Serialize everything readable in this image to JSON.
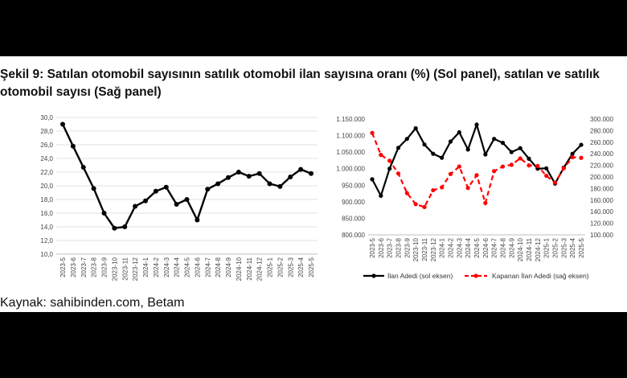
{
  "caption": "Şekil 9: Satılan otomobil sayısının satılık otomobil ilan sayısına oranı (%) (Sol panel), satılan ve satılık otomobil sayısı (Sağ panel)",
  "source": "Kaynak: sahibinden.com, Betam",
  "colors": {
    "black_series": "#000000",
    "red_series": "#ff0000",
    "grid": "#d9d9d9"
  },
  "chart_data": [
    {
      "type": "line",
      "x": [
        "2023-5",
        "2023-6",
        "2023-7",
        "2023-8",
        "2023-9",
        "2023-10",
        "2023-11",
        "2023-12",
        "2024-1",
        "2024-2",
        "2024-3",
        "2024-4",
        "2024-5",
        "2024-6",
        "2024-7",
        "2024-8",
        "2024-9",
        "2024-10",
        "2024-11",
        "2024-12",
        "2025-1",
        "2025-2",
        "2025-3",
        "2025-4",
        "2025-5"
      ],
      "series": [
        {
          "values": [
            29.0,
            25.8,
            22.7,
            19.6,
            16.0,
            13.8,
            14.0,
            17.0,
            17.8,
            19.2,
            19.8,
            17.3,
            18.0,
            15.0,
            19.5,
            20.3,
            21.2,
            22.0,
            21.4,
            21.8,
            20.3,
            19.9,
            21.3,
            22.4,
            21.8
          ]
        }
      ],
      "ylim": [
        10,
        30
      ],
      "yticks": [
        "10,0",
        "12,0",
        "14,0",
        "16,0",
        "18,0",
        "20,0",
        "22,0",
        "24,0",
        "26,0",
        "28,0",
        "30,0"
      ],
      "grid": true
    },
    {
      "type": "line",
      "x": [
        "2023-5",
        "2023-6",
        "2023-7",
        "2023-8",
        "2023-9",
        "2023-10",
        "2023-11",
        "2023-12",
        "2024-1",
        "2024-2",
        "2024-3",
        "2024-4",
        "2024-5",
        "2024-6",
        "2024-7",
        "2024-8",
        "2024-9",
        "2024-10",
        "2024-11",
        "2024-12",
        "2025-1",
        "2025-2",
        "2025-3",
        "2025-4",
        "2025-5"
      ],
      "series": [
        {
          "name": "İlan Adedi (sol eksen)",
          "axis": "left",
          "style": "solid",
          "values": [
            968000,
            918000,
            1000000,
            1063000,
            1090000,
            1122000,
            1073000,
            1045000,
            1033000,
            1082000,
            1110000,
            1058000,
            1133000,
            1043000,
            1090000,
            1078000,
            1050000,
            1062000,
            1030000,
            1000000,
            1001000,
            955000,
            1003000,
            1045000,
            1072000
          ]
        },
        {
          "name": "Kapanan İlan Adedi (sağ eksen)",
          "axis": "right",
          "style": "dashed",
          "values": [
            276000,
            238000,
            228000,
            206000,
            172000,
            153000,
            148000,
            177000,
            182000,
            205000,
            218000,
            181000,
            203000,
            155000,
            210000,
            218000,
            221000,
            232000,
            220000,
            219000,
            202000,
            190000,
            215000,
            234000,
            233000
          ]
        }
      ],
      "ylim_left": [
        800000,
        1150000
      ],
      "yticks_left": [
        "800.000",
        "850.000",
        "900.000",
        "950.000",
        "1.000.000",
        "1.050.000",
        "1.100.000",
        "1.150.000"
      ],
      "ylim_right": [
        100000,
        300000
      ],
      "yticks_right": [
        "100.000",
        "120.000",
        "140.000",
        "160.000",
        "180.000",
        "200.000",
        "220.000",
        "240.000",
        "260.000",
        "280.000",
        "300.000"
      ],
      "legend_position": "bottom",
      "grid": false
    }
  ]
}
